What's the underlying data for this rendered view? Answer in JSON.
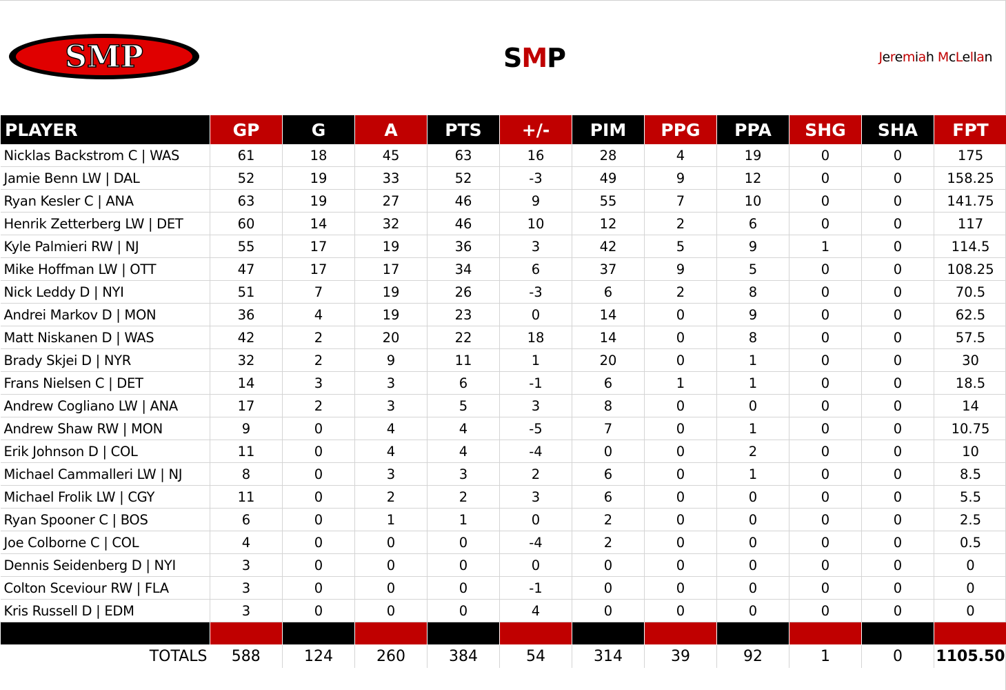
{
  "header": {
    "logo_text": "SMP",
    "title_parts": [
      {
        "text": "S",
        "color": "#000000"
      },
      {
        "text": "M",
        "color": "#c00000"
      },
      {
        "text": "P",
        "color": "#000000"
      }
    ],
    "author_parts": [
      {
        "text": "J",
        "color": "#c00000"
      },
      {
        "text": "e",
        "color": "#000000"
      },
      {
        "text": "r",
        "color": "#c00000"
      },
      {
        "text": "e",
        "color": "#000000"
      },
      {
        "text": "m",
        "color": "#c00000"
      },
      {
        "text": "i",
        "color": "#000000"
      },
      {
        "text": "a",
        "color": "#c00000"
      },
      {
        "text": "h",
        "color": "#000000"
      },
      {
        "text": " ",
        "color": "#000000"
      },
      {
        "text": "M",
        "color": "#c00000"
      },
      {
        "text": "c",
        "color": "#000000"
      },
      {
        "text": "L",
        "color": "#c00000"
      },
      {
        "text": "e",
        "color": "#000000"
      },
      {
        "text": "l",
        "color": "#c00000"
      },
      {
        "text": "l",
        "color": "#000000"
      },
      {
        "text": "a",
        "color": "#c00000"
      },
      {
        "text": "n",
        "color": "#000000"
      }
    ]
  },
  "colors": {
    "accent_red": "#c00000",
    "header_black": "#000000"
  },
  "table": {
    "columns": [
      {
        "label": "PLAYER",
        "color": "black"
      },
      {
        "label": "GP",
        "color": "red"
      },
      {
        "label": "G",
        "color": "black"
      },
      {
        "label": "A",
        "color": "red"
      },
      {
        "label": "PTS",
        "color": "black"
      },
      {
        "label": "+/-",
        "color": "red"
      },
      {
        "label": "PIM",
        "color": "black"
      },
      {
        "label": "PPG",
        "color": "red"
      },
      {
        "label": "PPA",
        "color": "black"
      },
      {
        "label": "SHG",
        "color": "red"
      },
      {
        "label": "SHA",
        "color": "black"
      },
      {
        "label": "FPT",
        "color": "red"
      }
    ],
    "rows": [
      [
        "Nicklas Backstrom C | WAS",
        "61",
        "18",
        "45",
        "63",
        "16",
        "28",
        "4",
        "19",
        "0",
        "0",
        "175"
      ],
      [
        "Jamie Benn LW | DAL",
        "52",
        "19",
        "33",
        "52",
        "-3",
        "49",
        "9",
        "12",
        "0",
        "0",
        "158.25"
      ],
      [
        "Ryan Kesler C | ANA",
        "63",
        "19",
        "27",
        "46",
        "9",
        "55",
        "7",
        "10",
        "0",
        "0",
        "141.75"
      ],
      [
        "Henrik Zetterberg LW | DET",
        "60",
        "14",
        "32",
        "46",
        "10",
        "12",
        "2",
        "6",
        "0",
        "0",
        "117"
      ],
      [
        "Kyle Palmieri RW | NJ",
        "55",
        "17",
        "19",
        "36",
        "3",
        "42",
        "5",
        "9",
        "1",
        "0",
        "114.5"
      ],
      [
        "Mike Hoffman LW | OTT",
        "47",
        "17",
        "17",
        "34",
        "6",
        "37",
        "9",
        "5",
        "0",
        "0",
        "108.25"
      ],
      [
        "Nick Leddy D | NYI",
        "51",
        "7",
        "19",
        "26",
        "-3",
        "6",
        "2",
        "8",
        "0",
        "0",
        "70.5"
      ],
      [
        "Andrei Markov D | MON",
        "36",
        "4",
        "19",
        "23",
        "0",
        "14",
        "0",
        "9",
        "0",
        "0",
        "62.5"
      ],
      [
        "Matt Niskanen D | WAS",
        "42",
        "2",
        "20",
        "22",
        "18",
        "14",
        "0",
        "8",
        "0",
        "0",
        "57.5"
      ],
      [
        "Brady Skjei D | NYR",
        "32",
        "2",
        "9",
        "11",
        "1",
        "20",
        "0",
        "1",
        "0",
        "0",
        "30"
      ],
      [
        "Frans Nielsen C | DET",
        "14",
        "3",
        "3",
        "6",
        "-1",
        "6",
        "1",
        "1",
        "0",
        "0",
        "18.5"
      ],
      [
        "Andrew Cogliano LW | ANA",
        "17",
        "2",
        "3",
        "5",
        "3",
        "8",
        "0",
        "0",
        "0",
        "0",
        "14"
      ],
      [
        "Andrew Shaw RW | MON",
        "9",
        "0",
        "4",
        "4",
        "-5",
        "7",
        "0",
        "1",
        "0",
        "0",
        "10.75"
      ],
      [
        "Erik Johnson D | COL",
        "11",
        "0",
        "4",
        "4",
        "-4",
        "0",
        "0",
        "2",
        "0",
        "0",
        "10"
      ],
      [
        "Michael Cammalleri LW | NJ",
        "8",
        "0",
        "3",
        "3",
        "2",
        "6",
        "0",
        "1",
        "0",
        "0",
        "8.5"
      ],
      [
        "Michael Frolik LW | CGY",
        "11",
        "0",
        "2",
        "2",
        "3",
        "6",
        "0",
        "0",
        "0",
        "0",
        "5.5"
      ],
      [
        "Ryan Spooner C | BOS",
        "6",
        "0",
        "1",
        "1",
        "0",
        "2",
        "0",
        "0",
        "0",
        "0",
        "2.5"
      ],
      [
        "Joe Colborne C | COL",
        "4",
        "0",
        "0",
        "0",
        "-4",
        "2",
        "0",
        "0",
        "0",
        "0",
        "0.5"
      ],
      [
        "Dennis Seidenberg D | NYI",
        "3",
        "0",
        "0",
        "0",
        "0",
        "0",
        "0",
        "0",
        "0",
        "0",
        "0"
      ],
      [
        "Colton Sceviour RW | FLA",
        "3",
        "0",
        "0",
        "0",
        "-1",
        "0",
        "0",
        "0",
        "0",
        "0",
        "0"
      ],
      [
        "Kris Russell D | EDM",
        "3",
        "0",
        "0",
        "0",
        "4",
        "0",
        "0",
        "0",
        "0",
        "0",
        "0"
      ]
    ],
    "totals": {
      "label": "TOTALS",
      "values": [
        "588",
        "124",
        "260",
        "384",
        "54",
        "314",
        "39",
        "92",
        "1",
        "0",
        "1105.50"
      ]
    }
  }
}
